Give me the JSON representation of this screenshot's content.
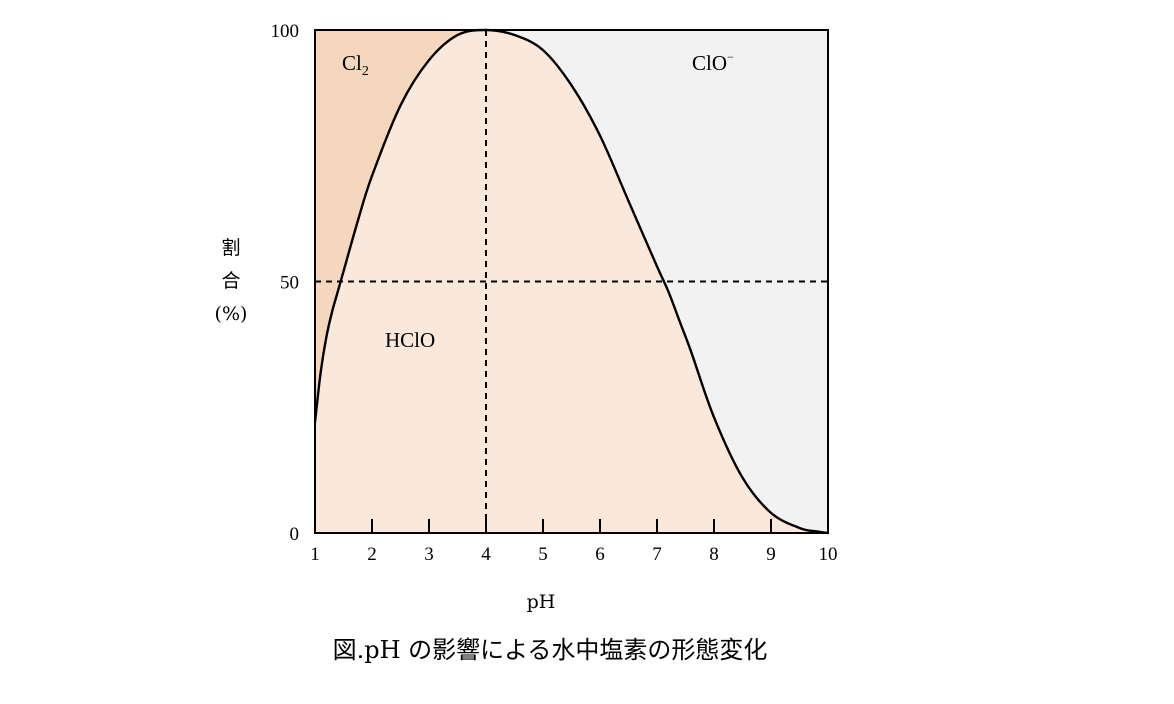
{
  "chart_data": {
    "type": "area",
    "title": "",
    "caption": "図.pH の影響による水中塩素の形態変化",
    "xlabel": "pH",
    "ylabel_chars": [
      "割",
      "合",
      "(%)"
    ],
    "xlim": [
      1,
      10
    ],
    "ylim": [
      0,
      100
    ],
    "x_ticks": [
      "1",
      "2",
      "3",
      "4",
      "5",
      "6",
      "7",
      "8",
      "9",
      "10"
    ],
    "y_ticks": [
      "0",
      "50",
      "100"
    ],
    "reference_lines": {
      "x": 4,
      "y": 50
    },
    "series": [
      {
        "name": "HClO",
        "x": [
          1.0,
          1.1,
          1.2,
          1.3,
          1.4,
          1.5,
          1.75,
          2.0,
          2.5,
          3.0,
          3.5,
          4.0,
          4.5,
          5.0,
          5.5,
          6.0,
          6.5,
          7.0,
          7.2,
          7.4,
          7.6,
          8.0,
          8.5,
          9.0,
          9.5,
          9.8,
          10.0
        ],
        "y": [
          22,
          32,
          39,
          44,
          48,
          52,
          62,
          71,
          85,
          94,
          99,
          100,
          99,
          96,
          89,
          79,
          66,
          53,
          48,
          42,
          36,
          23,
          11,
          4,
          1,
          0.3,
          0
        ]
      }
    ],
    "regions": [
      {
        "label_main": "Cl",
        "label_sub": "2",
        "color": "#f4d7bd"
      },
      {
        "label_main": "HClO",
        "label_sub": "",
        "color": "#fae9db"
      },
      {
        "label_main": "ClO",
        "label_sub": "−",
        "color": "#f2f2f2"
      }
    ],
    "line_color": "#000000",
    "grid": false
  }
}
